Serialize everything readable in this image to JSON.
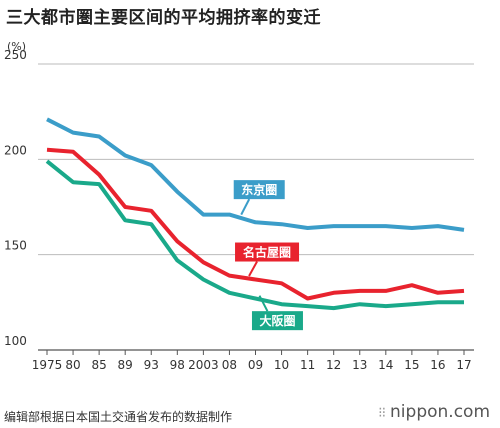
{
  "title": "三大都市圏主要区间的平均拥挤率的变迁",
  "footer": {
    "source": "编辑部根据日本国土交通省发布的数据制作",
    "logo_text": "nippon.com"
  },
  "chart_data": {
    "type": "line",
    "ylabel": "(%)",
    "ylim": [
      100,
      250
    ],
    "yticks": [
      100,
      150,
      200,
      250
    ],
    "grid": true,
    "categories": [
      "1975",
      "80",
      "85",
      "89",
      "93",
      "98",
      "2003",
      "08",
      "09",
      "10",
      "11",
      "12",
      "13",
      "14",
      "15",
      "16",
      "17"
    ],
    "series": [
      {
        "name": "东京圈",
        "color": "#3b9dc9",
        "values": [
          221,
          214,
          212,
          202,
          197,
          183,
          171,
          171,
          167,
          166,
          164,
          165,
          165,
          165,
          164,
          165,
          163
        ]
      },
      {
        "name": "名古屋圈",
        "color": "#e8232e",
        "values": [
          205,
          204,
          192,
          175,
          173,
          157,
          146,
          139,
          137,
          135,
          127,
          130,
          131,
          131,
          134,
          130,
          131
        ]
      },
      {
        "name": "大阪圈",
        "color": "#1aa98a",
        "values": [
          199,
          188,
          187,
          168,
          166,
          147,
          137,
          130,
          127,
          124,
          123,
          122,
          124,
          123,
          124,
          125,
          125
        ]
      }
    ]
  }
}
